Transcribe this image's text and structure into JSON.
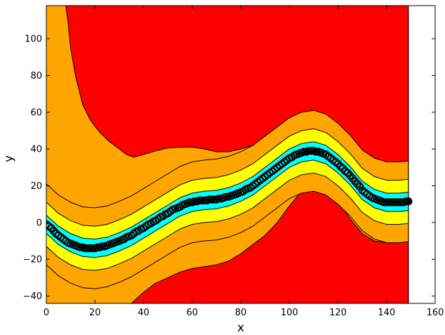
{
  "chart_data": {
    "type": "area",
    "title": "",
    "xlabel": "x",
    "ylabel": "y",
    "xlim": [
      0,
      160
    ],
    "ylim": [
      -44,
      118
    ],
    "x_ticks": [
      0,
      20,
      40,
      60,
      80,
      100,
      120,
      140,
      160
    ],
    "y_ticks": [
      -40,
      -20,
      0,
      20,
      40,
      60,
      80,
      100
    ],
    "grid": false,
    "legend": "none",
    "x": [
      0,
      5,
      10,
      15,
      20,
      25,
      30,
      35,
      40,
      45,
      50,
      55,
      60,
      65,
      70,
      75,
      80,
      85,
      90,
      95,
      100,
      105,
      110,
      115,
      120,
      125,
      130,
      135,
      140,
      145,
      149
    ],
    "center": [
      -1,
      -7,
      -11,
      -13.5,
      -14,
      -13,
      -10.5,
      -7.5,
      -3.5,
      0.5,
      4.5,
      8.5,
      11,
      12,
      12.5,
      14,
      16.5,
      20,
      25,
      30,
      35,
      38,
      39,
      37,
      32,
      25.5,
      17.5,
      13,
      11,
      11,
      11.5
    ],
    "band_offsets": {
      "cyan": [
        -5,
        5
      ],
      "yellow": [
        -12,
        12
      ],
      "orange_lower": [
        -22,
        -12
      ],
      "orange_upper": [
        12,
        22
      ]
    },
    "upper_red_boundary": [
      [
        0,
        118
      ],
      [
        5,
        118
      ],
      [
        8,
        118
      ],
      [
        9,
        108
      ],
      [
        10,
        95
      ],
      [
        12,
        80
      ],
      [
        15,
        64
      ],
      [
        18,
        56
      ],
      [
        22,
        49
      ],
      [
        26,
        44
      ],
      [
        30,
        40
      ],
      [
        33,
        37
      ],
      [
        36,
        35.5
      ],
      [
        40,
        37
      ],
      [
        45,
        39
      ],
      [
        50,
        40.5
      ],
      [
        55,
        41
      ],
      [
        60,
        41
      ],
      [
        65,
        40
      ],
      [
        70,
        38.5
      ],
      [
        75,
        38.5
      ],
      [
        80,
        40
      ],
      [
        85,
        42
      ],
      [
        90,
        45
      ],
      [
        95,
        49
      ],
      [
        100,
        53
      ],
      [
        105,
        56
      ],
      [
        110,
        57
      ],
      [
        115,
        55
      ],
      [
        120,
        50
      ],
      [
        125,
        43
      ],
      [
        130,
        37
      ],
      [
        135,
        33
      ],
      [
        140,
        31
      ],
      [
        145,
        30
      ],
      [
        149,
        30
      ]
    ],
    "lower_red_boundary": [
      [
        0,
        -44
      ],
      [
        9,
        -44
      ],
      [
        20,
        -44
      ],
      [
        30,
        -44
      ],
      [
        35,
        -44
      ],
      [
        40,
        -38
      ],
      [
        45,
        -33
      ],
      [
        50,
        -30
      ],
      [
        55,
        -27
      ],
      [
        60,
        -25
      ],
      [
        65,
        -24
      ],
      [
        70,
        -23
      ],
      [
        75,
        -21
      ],
      [
        80,
        -17
      ],
      [
        85,
        -12
      ],
      [
        90,
        -7
      ],
      [
        95,
        0
      ],
      [
        100,
        9
      ],
      [
        105,
        17
      ],
      [
        110,
        21
      ],
      [
        115,
        19
      ],
      [
        120,
        12
      ],
      [
        125,
        2
      ],
      [
        130,
        -6
      ],
      [
        135,
        -10
      ],
      [
        140,
        -11
      ],
      [
        145,
        -11
      ],
      [
        149,
        -10
      ]
    ],
    "colors": {
      "red": "#ff0000",
      "orange": "#ffa500",
      "yellow": "#ffff00",
      "cyan": "#00ffff",
      "points": "#000000"
    },
    "points": [
      [
        0,
        -1
      ],
      [
        1,
        -2
      ],
      [
        2,
        -3
      ],
      [
        3,
        -4.5
      ],
      [
        4,
        -6
      ],
      [
        5,
        -7
      ],
      [
        6,
        -8
      ],
      [
        7,
        -9
      ],
      [
        8,
        -10
      ],
      [
        9,
        -11
      ],
      [
        10,
        -11.5
      ],
      [
        11,
        -12
      ],
      [
        12,
        -12.5
      ],
      [
        13,
        -13
      ],
      [
        14,
        -13.5
      ],
      [
        15,
        -13.5
      ],
      [
        16,
        -14
      ],
      [
        17,
        -14
      ],
      [
        18,
        -14
      ],
      [
        19,
        -14
      ],
      [
        20,
        -14
      ],
      [
        21,
        -13.5
      ],
      [
        22,
        -13.5
      ],
      [
        23,
        -13
      ],
      [
        24,
        -13
      ],
      [
        25,
        -12.5
      ],
      [
        26,
        -12
      ],
      [
        27,
        -11.5
      ],
      [
        28,
        -11
      ],
      [
        29,
        -10.5
      ],
      [
        30,
        -10
      ],
      [
        31,
        -9.5
      ],
      [
        32,
        -9
      ],
      [
        33,
        -8
      ],
      [
        34,
        -7.5
      ],
      [
        35,
        -7
      ],
      [
        36,
        -6
      ],
      [
        37,
        -5
      ],
      [
        38,
        -4.5
      ],
      [
        39,
        -3.5
      ],
      [
        40,
        -3
      ],
      [
        41,
        -2
      ],
      [
        42,
        -1
      ],
      [
        43,
        -0.5
      ],
      [
        44,
        0.5
      ],
      [
        45,
        1
      ],
      [
        46,
        2
      ],
      [
        47,
        3
      ],
      [
        48,
        3.5
      ],
      [
        49,
        4.5
      ],
      [
        50,
        5
      ],
      [
        51,
        6
      ],
      [
        52,
        7
      ],
      [
        53,
        7.5
      ],
      [
        54,
        8
      ],
      [
        55,
        8.5
      ],
      [
        56,
        9.5
      ],
      [
        57,
        10
      ],
      [
        58,
        10.5
      ],
      [
        59,
        11
      ],
      [
        60,
        11
      ],
      [
        61,
        11.5
      ],
      [
        62,
        11.5
      ],
      [
        63,
        12
      ],
      [
        64,
        12
      ],
      [
        65,
        12
      ],
      [
        66,
        12
      ],
      [
        67,
        12.5
      ],
      [
        68,
        12.5
      ],
      [
        69,
        12.5
      ],
      [
        70,
        12.5
      ],
      [
        71,
        13
      ],
      [
        72,
        13
      ],
      [
        73,
        13.5
      ],
      [
        74,
        14
      ],
      [
        75,
        14
      ],
      [
        76,
        14.5
      ],
      [
        77,
        15
      ],
      [
        78,
        15.5
      ],
      [
        79,
        16
      ],
      [
        80,
        16.5
      ],
      [
        81,
        17
      ],
      [
        82,
        18
      ],
      [
        83,
        18.5
      ],
      [
        84,
        19
      ],
      [
        85,
        20
      ],
      [
        86,
        21
      ],
      [
        87,
        22
      ],
      [
        88,
        23
      ],
      [
        89,
        24
      ],
      [
        90,
        25
      ],
      [
        91,
        26
      ],
      [
        92,
        27
      ],
      [
        93,
        28
      ],
      [
        94,
        29
      ],
      [
        95,
        30
      ],
      [
        96,
        31
      ],
      [
        97,
        32
      ],
      [
        98,
        33
      ],
      [
        99,
        34
      ],
      [
        100,
        35
      ],
      [
        101,
        35.5
      ],
      [
        102,
        36.5
      ],
      [
        103,
        37
      ],
      [
        104,
        37.5
      ],
      [
        105,
        38
      ],
      [
        106,
        38.5
      ],
      [
        107,
        38.5
      ],
      [
        108,
        39
      ],
      [
        109,
        39
      ],
      [
        110,
        39
      ],
      [
        111,
        38.5
      ],
      [
        112,
        38.5
      ],
      [
        113,
        38
      ],
      [
        114,
        37.5
      ],
      [
        115,
        37
      ],
      [
        116,
        36
      ],
      [
        117,
        35
      ],
      [
        118,
        34
      ],
      [
        119,
        33
      ],
      [
        120,
        32
      ],
      [
        121,
        30.5
      ],
      [
        122,
        29.5
      ],
      [
        123,
        28
      ],
      [
        124,
        27
      ],
      [
        125,
        25.5
      ],
      [
        126,
        24
      ],
      [
        127,
        22.5
      ],
      [
        128,
        21
      ],
      [
        129,
        19.5
      ],
      [
        130,
        17.5
      ],
      [
        131,
        16.5
      ],
      [
        132,
        15.5
      ],
      [
        133,
        14.5
      ],
      [
        134,
        13.5
      ],
      [
        135,
        13
      ],
      [
        136,
        12.5
      ],
      [
        137,
        12
      ],
      [
        138,
        11.5
      ],
      [
        139,
        11
      ],
      [
        140,
        11
      ],
      [
        141,
        11
      ],
      [
        142,
        11
      ],
      [
        143,
        11
      ],
      [
        144,
        11
      ],
      [
        145,
        11
      ],
      [
        146,
        11
      ],
      [
        147,
        11
      ],
      [
        148,
        11.5
      ],
      [
        149,
        11.5
      ]
    ]
  }
}
